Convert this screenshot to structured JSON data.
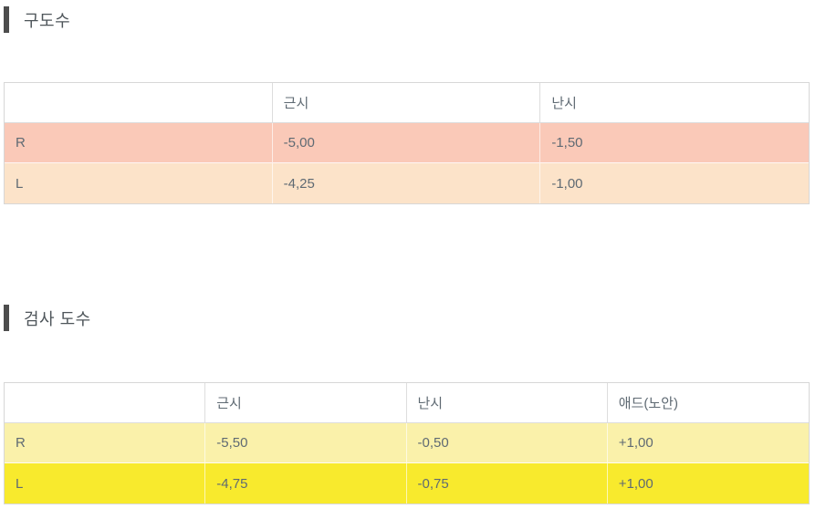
{
  "colors": {
    "accent_bar": "#4d4d4d",
    "title_text": "#4e555a",
    "table_border": "#d7d7d7",
    "header_border": "#dddddd",
    "cell_text": "#5f6a73",
    "old_row_r_bg": "#fac9b8",
    "old_row_l_bg": "#fce3c9",
    "exam_row_r_bg": "#faf1aa",
    "exam_row_l_bg": "#f8ea2d"
  },
  "sections": [
    {
      "title": "구도수",
      "columns": [
        "",
        "근시",
        "난시"
      ],
      "rows": [
        {
          "label": "R",
          "values": [
            "-5,00",
            "-1,50"
          ],
          "bg": "#fac9b8"
        },
        {
          "label": "L",
          "values": [
            "-4,25",
            "-1,00"
          ],
          "bg": "#fce3c9"
        }
      ]
    },
    {
      "title": "검사 도수",
      "columns": [
        "",
        "근시",
        "난시",
        "애드(노안)"
      ],
      "rows": [
        {
          "label": "R",
          "values": [
            "-5,50",
            "-0,50",
            "+1,00"
          ],
          "bg": "#faf1aa"
        },
        {
          "label": "L",
          "values": [
            "-4,75",
            "-0,75",
            "+1,00"
          ],
          "bg": "#f8ea2d"
        }
      ]
    }
  ]
}
